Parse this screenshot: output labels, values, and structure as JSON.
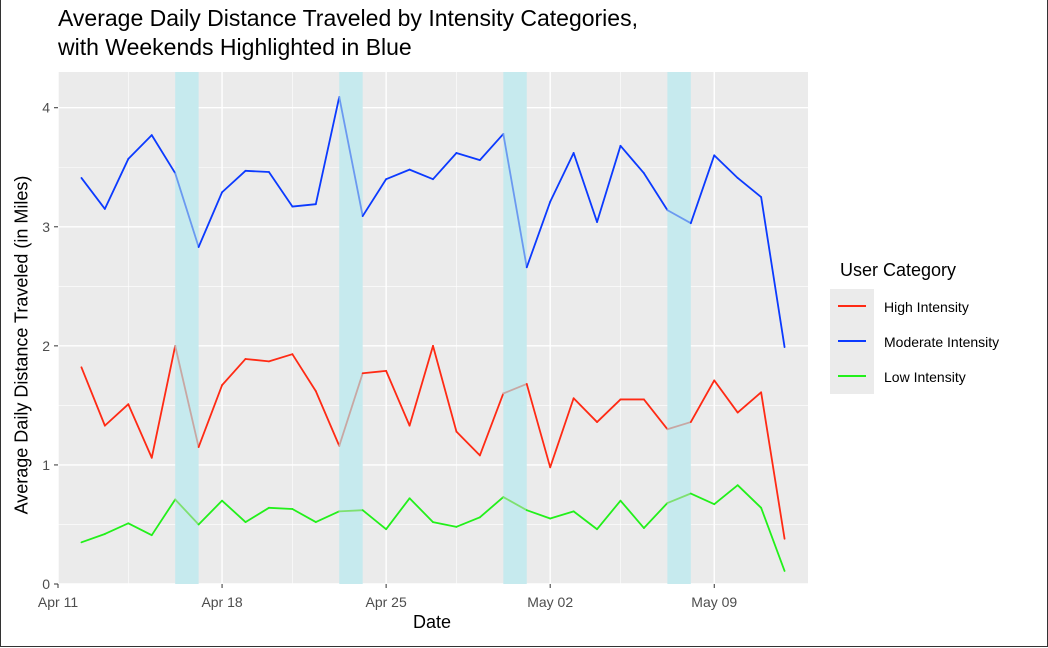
{
  "chart_data": {
    "type": "line",
    "title": [
      "Average Daily Distance Traveled by Intensity Categories,",
      "with Weekends Highlighted in Blue"
    ],
    "xlabel": "Date",
    "ylabel": "Average Daily Distance Traveled (in Miles)",
    "x": [
      "2016-04-12",
      "2016-04-13",
      "2016-04-14",
      "2016-04-15",
      "2016-04-16",
      "2016-04-17",
      "2016-04-18",
      "2016-04-19",
      "2016-04-20",
      "2016-04-21",
      "2016-04-22",
      "2016-04-23",
      "2016-04-24",
      "2016-04-25",
      "2016-04-26",
      "2016-04-27",
      "2016-04-28",
      "2016-04-29",
      "2016-04-30",
      "2016-05-01",
      "2016-05-02",
      "2016-05-03",
      "2016-05-04",
      "2016-05-05",
      "2016-05-06",
      "2016-05-07",
      "2016-05-08",
      "2016-05-09",
      "2016-05-10",
      "2016-05-11",
      "2016-05-12"
    ],
    "xlim": [
      "2016-04-11",
      "2016-05-13"
    ],
    "x_ticks": [
      {
        "date": "2016-04-11",
        "label": "Apr 11"
      },
      {
        "date": "2016-04-18",
        "label": "Apr 18"
      },
      {
        "date": "2016-04-25",
        "label": "Apr 25"
      },
      {
        "date": "2016-05-02",
        "label": "May 02"
      },
      {
        "date": "2016-05-09",
        "label": "May 09"
      }
    ],
    "ylim": [
      0,
      4.3
    ],
    "y_ticks": [
      0,
      1,
      2,
      3,
      4
    ],
    "weekends": [
      [
        "2016-04-16",
        "2016-04-17"
      ],
      [
        "2016-04-23",
        "2016-04-24"
      ],
      [
        "2016-04-30",
        "2016-05-01"
      ],
      [
        "2016-05-07",
        "2016-05-08"
      ]
    ],
    "weekend_color": "#c6eaee",
    "panel_color": "#ebebeb",
    "grid": true,
    "legend_title": "User Category",
    "legend_position": "right",
    "series": [
      {
        "name": "High Intensity",
        "color": "#ff2a14",
        "weekend_color": "#c8a7a3",
        "values": [
          1.82,
          1.33,
          1.51,
          1.06,
          2.0,
          1.15,
          1.67,
          1.89,
          1.87,
          1.93,
          1.62,
          1.16,
          1.77,
          1.79,
          1.33,
          2.0,
          1.28,
          1.08,
          1.6,
          1.68,
          0.98,
          1.56,
          1.36,
          1.55,
          1.55,
          1.3,
          1.36,
          1.71,
          1.44,
          1.61,
          0.38
        ]
      },
      {
        "name": "Moderate Intensity",
        "color": "#0b3aff",
        "weekend_color": "#6b99f0",
        "values": [
          3.41,
          3.15,
          3.57,
          3.77,
          3.45,
          2.83,
          3.29,
          3.47,
          3.46,
          3.17,
          3.19,
          4.09,
          3.09,
          3.4,
          3.48,
          3.4,
          3.62,
          3.56,
          3.78,
          2.66,
          3.21,
          3.62,
          3.04,
          3.68,
          3.45,
          3.14,
          3.03,
          3.6,
          3.41,
          3.25,
          1.99
        ]
      },
      {
        "name": "Low Intensity",
        "color": "#22f01a",
        "weekend_color": "#7ee070",
        "values": [
          0.35,
          0.42,
          0.51,
          0.41,
          0.71,
          0.5,
          0.7,
          0.52,
          0.64,
          0.63,
          0.52,
          0.61,
          0.62,
          0.46,
          0.72,
          0.52,
          0.48,
          0.56,
          0.73,
          0.62,
          0.55,
          0.61,
          0.46,
          0.7,
          0.47,
          0.68,
          0.76,
          0.67,
          0.83,
          0.64,
          0.11
        ]
      }
    ]
  }
}
